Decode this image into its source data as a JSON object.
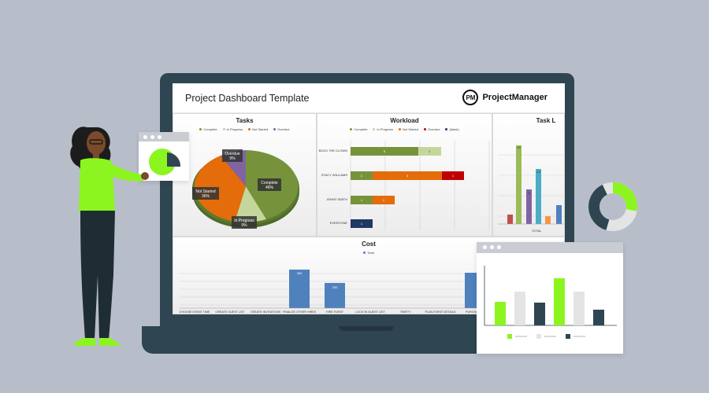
{
  "app": {
    "title": "Project Dashboard Template",
    "brand_logo": "PM",
    "brand_name": "ProjectManager"
  },
  "colors": {
    "complete": "#76933c",
    "in_progress": "#c4d79b",
    "not_started": "#e46c0a",
    "overdue": "#8064a2",
    "lime": "#8cf51f",
    "dark": "#2f4652",
    "light_gray": "#e4e4e4",
    "bar_blue": "#4f81bd",
    "navy": "#1f3864"
  },
  "tasks": {
    "title": "Tasks",
    "legend": [
      "Complete",
      "In Progress",
      "Not Started",
      "Overdue"
    ],
    "labels": {
      "complete": [
        "Complete",
        "46%"
      ],
      "in_progress": [
        "In Progress",
        "9%"
      ],
      "not_started": [
        "Not Started",
        "36%"
      ],
      "overdue": [
        "Overdue",
        "9%"
      ]
    }
  },
  "workload": {
    "title": "Workload",
    "legend": [
      "Complete",
      "In Progress",
      "Not Started",
      "Overdue",
      "(blank)"
    ],
    "people": [
      "BOZO THE CLOWN",
      "STACY WILLIAMS",
      "JENNY SMITH",
      "EVERYONE"
    ],
    "values": {
      "bozo": [
        "5",
        "1"
      ],
      "stacy": [
        "1",
        "3",
        "1"
      ],
      "jenny": [
        "1",
        "1"
      ],
      "everyone": [
        "1"
      ]
    }
  },
  "task_length": {
    "title": "Task L",
    "values": [
      "25",
      "13",
      "11"
    ],
    "axis_label": "TOTAL"
  },
  "cost": {
    "title": "Cost",
    "legend": [
      "Total"
    ],
    "categories": [
      "CHOOSE EVENT TIME",
      "CREATE GUEST LIST",
      "CREATE INVITATIONS",
      "FINALIZE OTHER HIRES",
      "HIRE EVENT",
      "LOCK IN GUEST LIST",
      "PARTY!",
      "PLAN EVENT DETAILS",
      "PURCHASE S"
    ],
    "bar_labels": [
      "350",
      "200"
    ]
  },
  "chart_data": [
    {
      "type": "pie",
      "title": "Tasks",
      "categories": [
        "Complete",
        "In Progress",
        "Not Started",
        "Overdue"
      ],
      "values": [
        46,
        9,
        36,
        9
      ]
    },
    {
      "type": "bar",
      "title": "Workload",
      "categories": [
        "BOZO THE CLOWN",
        "STACY WILLIAMS",
        "JENNY SMITH",
        "EVERYONE"
      ],
      "series": [
        {
          "name": "Complete",
          "values": [
            5,
            1,
            1,
            0
          ]
        },
        {
          "name": "In Progress",
          "values": [
            1,
            0,
            0,
            0
          ]
        },
        {
          "name": "Not Started",
          "values": [
            0,
            3,
            1,
            0
          ]
        },
        {
          "name": "Overdue",
          "values": [
            0,
            1,
            0,
            0
          ]
        },
        {
          "name": "(blank)",
          "values": [
            0,
            0,
            0,
            1
          ]
        }
      ]
    },
    {
      "type": "bar",
      "title": "Cost",
      "categories": [
        "FINALIZE OTHER HIRES",
        "HIRE EVENT"
      ],
      "values": [
        350,
        200
      ]
    }
  ]
}
